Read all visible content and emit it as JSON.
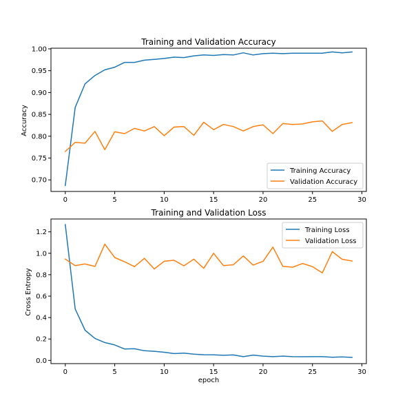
{
  "chart_data": [
    {
      "type": "line",
      "title": "Training and Validation Accuracy",
      "xlabel": "",
      "ylabel": "Accuracy",
      "xlim": [
        -1.45,
        30.45
      ],
      "ylim": [
        0.6735,
        1.0015
      ],
      "xticks": [
        0,
        5,
        10,
        15,
        20,
        25,
        30
      ],
      "xtick_labels": [
        "0",
        "5",
        "10",
        "15",
        "20",
        "25",
        "30"
      ],
      "yticks": [
        0.7,
        0.75,
        0.8,
        0.85,
        0.9,
        0.95,
        1.0
      ],
      "ytick_labels": [
        "0.70",
        "0.75",
        "0.80",
        "0.85",
        "0.90",
        "0.95",
        "1.00"
      ],
      "legend_position": "lower-right",
      "grid": false,
      "x": [
        0,
        1,
        2,
        3,
        4,
        5,
        6,
        7,
        8,
        9,
        10,
        11,
        12,
        13,
        14,
        15,
        16,
        17,
        18,
        19,
        20,
        21,
        22,
        23,
        24,
        25,
        26,
        27,
        28,
        29
      ],
      "series": [
        {
          "name": "Training Accuracy",
          "color": "#1f77b4",
          "values": [
            0.687,
            0.866,
            0.92,
            0.939,
            0.952,
            0.958,
            0.969,
            0.969,
            0.974,
            0.976,
            0.978,
            0.981,
            0.98,
            0.984,
            0.986,
            0.985,
            0.987,
            0.986,
            0.991,
            0.986,
            0.989,
            0.99,
            0.989,
            0.99,
            0.99,
            0.99,
            0.99,
            0.993,
            0.991,
            0.993
          ]
        },
        {
          "name": "Validation Accuracy",
          "color": "#ff7f0e",
          "values": [
            0.765,
            0.786,
            0.784,
            0.811,
            0.769,
            0.81,
            0.806,
            0.818,
            0.812,
            0.822,
            0.801,
            0.821,
            0.822,
            0.802,
            0.832,
            0.815,
            0.827,
            0.822,
            0.812,
            0.822,
            0.826,
            0.806,
            0.829,
            0.827,
            0.828,
            0.833,
            0.835,
            0.811,
            0.827,
            0.831
          ]
        }
      ]
    },
    {
      "type": "line",
      "title": "Training and Validation Loss",
      "xlabel": "epoch",
      "ylabel": "Cross Entropy",
      "xlim": [
        -1.45,
        30.45
      ],
      "ylim": [
        -0.03,
        1.32
      ],
      "xticks": [
        0,
        5,
        10,
        15,
        20,
        25,
        30
      ],
      "xtick_labels": [
        "0",
        "5",
        "10",
        "15",
        "20",
        "25",
        "30"
      ],
      "yticks": [
        0.0,
        0.2,
        0.4,
        0.6,
        0.8,
        1.0,
        1.2
      ],
      "ytick_labels": [
        "0.0",
        "0.2",
        "0.4",
        "0.6",
        "0.8",
        "1.0",
        "1.2"
      ],
      "legend_position": "upper-right",
      "grid": false,
      "x": [
        0,
        1,
        2,
        3,
        4,
        5,
        6,
        7,
        8,
        9,
        10,
        11,
        12,
        13,
        14,
        15,
        16,
        17,
        18,
        19,
        20,
        21,
        22,
        23,
        24,
        25,
        26,
        27,
        28,
        29
      ],
      "series": [
        {
          "name": "Training Loss",
          "color": "#1f77b4",
          "values": [
            1.268,
            0.48,
            0.282,
            0.205,
            0.167,
            0.144,
            0.106,
            0.109,
            0.09,
            0.085,
            0.076,
            0.064,
            0.068,
            0.059,
            0.053,
            0.052,
            0.048,
            0.051,
            0.035,
            0.05,
            0.04,
            0.035,
            0.04,
            0.035,
            0.034,
            0.035,
            0.035,
            0.029,
            0.033,
            0.028
          ]
        },
        {
          "name": "Validation Loss",
          "color": "#ff7f0e",
          "values": [
            0.946,
            0.885,
            0.9,
            0.877,
            1.085,
            0.96,
            0.92,
            0.875,
            0.953,
            0.853,
            0.925,
            0.935,
            0.883,
            0.945,
            0.86,
            1.0,
            0.885,
            0.893,
            0.975,
            0.89,
            0.925,
            1.058,
            0.878,
            0.87,
            0.905,
            0.875,
            0.817,
            1.015,
            0.944,
            0.928
          ]
        }
      ]
    }
  ]
}
